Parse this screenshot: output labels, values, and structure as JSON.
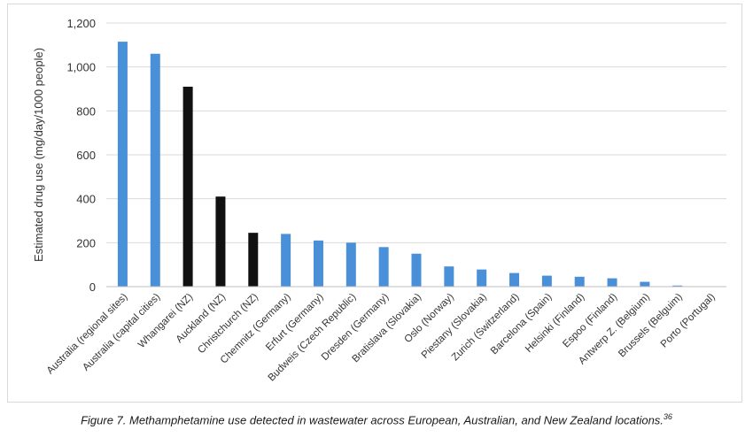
{
  "chart_data": {
    "type": "bar",
    "title": "",
    "xlabel": "",
    "ylabel": "Estimated drug use (mg/day/1000 people)",
    "ylim": [
      0,
      1200
    ],
    "yticks": [
      "0",
      "200",
      "400",
      "600",
      "800",
      "1,000",
      "1,200"
    ],
    "ytick_values": [
      0,
      200,
      400,
      600,
      800,
      1000,
      1200
    ],
    "grid": true,
    "legend": "none",
    "categories": [
      "Australia (regional sites)",
      "Australia (capital cities)",
      "Whangarei (NZ)",
      "Auckland (NZ)",
      "Christchurch (NZ)",
      "Chemnitz (Germany)",
      "Erfurt (Germany)",
      "Budweis (Czech Republic)",
      "Dresden (Germany)",
      "Bratislava (Slovakia)",
      "Oslo (Norway)",
      "Piestany (Slovakia)",
      "Zurich (Switzerland)",
      "Barcelona (Spain)",
      "Helsinki (Finland)",
      "Espoo (Finland)",
      "Antwerp Z. (Belgium)",
      "Brussels (Belguim)",
      "Porto (Portugal)"
    ],
    "values": [
      1115,
      1060,
      910,
      410,
      245,
      240,
      210,
      200,
      180,
      150,
      92,
      78,
      62,
      50,
      45,
      38,
      22,
      5,
      0
    ],
    "bar_colors": [
      "#4a90d9",
      "#4a90d9",
      "#111111",
      "#111111",
      "#111111",
      "#4a90d9",
      "#4a90d9",
      "#4a90d9",
      "#4a90d9",
      "#4a90d9",
      "#4a90d9",
      "#4a90d9",
      "#4a90d9",
      "#4a90d9",
      "#4a90d9",
      "#4a90d9",
      "#4a90d9",
      "#4a90d9",
      "#4a90d9"
    ]
  },
  "caption": {
    "text": "Figure 7. Methamphetamine use detected in wastewater across European, Australian, and New Zealand locations.",
    "superscript": "36"
  },
  "colors": {
    "bar_default": "#4a90d9",
    "bar_nz": "#111111",
    "gridline": "#d9d9d9",
    "text": "#333333"
  }
}
